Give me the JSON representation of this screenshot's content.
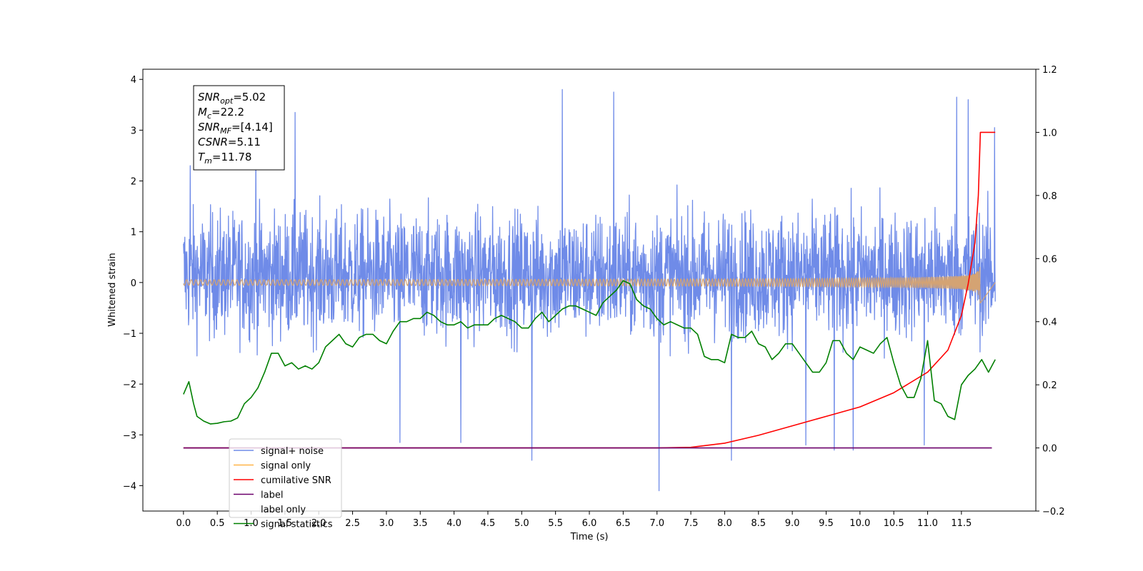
{
  "chart_data": {
    "type": "line",
    "xlabel": "Time (s)",
    "ylabel": "Whitened strain",
    "xlim": [
      -0.6,
      12.6
    ],
    "ylim": [
      -4.5,
      4.2
    ],
    "y2lim": [
      -0.2,
      1.2
    ],
    "grid": false,
    "legend_position": "lower-left",
    "x_ticks": [
      0.0,
      0.5,
      1.0,
      1.5,
      2.0,
      2.5,
      3.0,
      3.5,
      4.0,
      4.5,
      5.0,
      5.5,
      6.0,
      6.5,
      7.0,
      7.5,
      8.0,
      8.5,
      9.0,
      9.5,
      10.0,
      10.5,
      11.0,
      11.5
    ],
    "x_tick_labels": [
      "0.0",
      "0.5",
      "1.0",
      "1.5",
      "2.0",
      "2.5",
      "3.0",
      "3.5",
      "4.0",
      "4.5",
      "5.0",
      "5.5",
      "6.0",
      "6.5",
      "7.0",
      "7.5",
      "8.0",
      "8.5",
      "9.0",
      "9.5",
      "10.0",
      "10.5",
      "11.0",
      "11.5"
    ],
    "y_ticks": [
      -4,
      -3,
      -2,
      -1,
      0,
      1,
      2,
      3,
      4
    ],
    "y_tick_labels": [
      "−4",
      "−3",
      "−2",
      "−1",
      "0",
      "1",
      "2",
      "3",
      "4"
    ],
    "y2_ticks": [
      -0.2,
      0.0,
      0.2,
      0.4,
      0.6,
      0.8,
      1.0,
      1.2
    ],
    "y2_tick_labels": [
      "−0.2",
      "0.0",
      "0.2",
      "0.4",
      "0.6",
      "0.8",
      "1.0",
      "1.2"
    ],
    "annotation": [
      {
        "base": "SNR",
        "sub": "opt",
        "rest": "=5.02"
      },
      {
        "base": "M",
        "sub": "c",
        "rest": "=22.2"
      },
      {
        "base": "SNR",
        "sub": "MF",
        "rest": "=[4.14]"
      },
      {
        "base": "CSNR",
        "sub": "",
        "rest": "=5.11"
      },
      {
        "base": "T",
        "sub": "m",
        "rest": "=11.78"
      }
    ],
    "series": [
      {
        "name": "signal+ noise",
        "axis": "left",
        "color": "#6f8be8",
        "style": "noise",
        "x_range": [
          0.0,
          12.0
        ],
        "y_range": [
          -4.1,
          3.8
        ],
        "spikes": [
          [
            5.6,
            3.8
          ],
          [
            6.36,
            3.75
          ],
          [
            11.43,
            3.65
          ],
          [
            11.6,
            3.6
          ],
          [
            1.65,
            3.35
          ],
          [
            7.03,
            -4.1
          ],
          [
            5.15,
            -3.5
          ],
          [
            8.1,
            -3.5
          ],
          [
            9.2,
            -3.2
          ],
          [
            3.2,
            -3.15
          ],
          [
            4.1,
            -3.15
          ],
          [
            9.62,
            -3.3
          ],
          [
            9.9,
            -3.3
          ],
          [
            10.95,
            -3.2
          ],
          [
            0.1,
            2.3
          ],
          [
            1.07,
            2.8
          ],
          [
            11.99,
            3.05
          ]
        ]
      },
      {
        "name": "signal only",
        "axis": "left",
        "color": "#d4a373",
        "style": "chirp",
        "x_range": [
          0.0,
          11.78
        ],
        "peak_amplitude": 1.0
      },
      {
        "name": "cumilative SNR",
        "axis": "right",
        "color": "#ff0000",
        "points": [
          [
            0.0,
            0.0
          ],
          [
            7.0,
            0.0
          ],
          [
            7.5,
            0.002
          ],
          [
            8.0,
            0.015
          ],
          [
            8.5,
            0.04
          ],
          [
            9.0,
            0.07
          ],
          [
            9.5,
            0.1
          ],
          [
            10.0,
            0.13
          ],
          [
            10.5,
            0.175
          ],
          [
            11.0,
            0.24
          ],
          [
            11.3,
            0.31
          ],
          [
            11.5,
            0.42
          ],
          [
            11.6,
            0.52
          ],
          [
            11.7,
            0.65
          ],
          [
            11.75,
            0.8
          ],
          [
            11.78,
            1.0
          ],
          [
            12.0,
            1.0
          ]
        ]
      },
      {
        "name": "label",
        "axis": "right",
        "color": "#6b006b",
        "points": [
          [
            0.0,
            0.0
          ],
          [
            11.95,
            0.0
          ]
        ]
      },
      {
        "name": "label only",
        "axis": "right",
        "hidden": true,
        "color": "#ffffff",
        "points": []
      },
      {
        "name": "signal statistics",
        "axis": "right",
        "color": "#008000",
        "points": [
          [
            0.0,
            0.17
          ],
          [
            0.08,
            0.21
          ],
          [
            0.15,
            0.14
          ],
          [
            0.2,
            0.1
          ],
          [
            0.3,
            0.085
          ],
          [
            0.4,
            0.076
          ],
          [
            0.5,
            0.078
          ],
          [
            0.6,
            0.083
          ],
          [
            0.7,
            0.085
          ],
          [
            0.8,
            0.095
          ],
          [
            0.9,
            0.14
          ],
          [
            1.0,
            0.16
          ],
          [
            1.1,
            0.19
          ],
          [
            1.2,
            0.24
          ],
          [
            1.3,
            0.3
          ],
          [
            1.4,
            0.3
          ],
          [
            1.5,
            0.26
          ],
          [
            1.6,
            0.27
          ],
          [
            1.7,
            0.25
          ],
          [
            1.8,
            0.26
          ],
          [
            1.9,
            0.25
          ],
          [
            2.0,
            0.27
          ],
          [
            2.1,
            0.32
          ],
          [
            2.2,
            0.34
          ],
          [
            2.3,
            0.36
          ],
          [
            2.4,
            0.33
          ],
          [
            2.5,
            0.32
          ],
          [
            2.6,
            0.35
          ],
          [
            2.7,
            0.36
          ],
          [
            2.8,
            0.36
          ],
          [
            2.9,
            0.34
          ],
          [
            3.0,
            0.33
          ],
          [
            3.1,
            0.37
          ],
          [
            3.2,
            0.4
          ],
          [
            3.3,
            0.4
          ],
          [
            3.4,
            0.41
          ],
          [
            3.5,
            0.41
          ],
          [
            3.6,
            0.43
          ],
          [
            3.7,
            0.42
          ],
          [
            3.8,
            0.4
          ],
          [
            3.9,
            0.39
          ],
          [
            4.0,
            0.39
          ],
          [
            4.1,
            0.4
          ],
          [
            4.2,
            0.38
          ],
          [
            4.3,
            0.39
          ],
          [
            4.4,
            0.39
          ],
          [
            4.5,
            0.39
          ],
          [
            4.6,
            0.41
          ],
          [
            4.7,
            0.42
          ],
          [
            4.8,
            0.41
          ],
          [
            4.9,
            0.4
          ],
          [
            5.0,
            0.38
          ],
          [
            5.1,
            0.38
          ],
          [
            5.2,
            0.41
          ],
          [
            5.3,
            0.43
          ],
          [
            5.4,
            0.4
          ],
          [
            5.5,
            0.42
          ],
          [
            5.6,
            0.44
          ],
          [
            5.7,
            0.45
          ],
          [
            5.8,
            0.45
          ],
          [
            5.9,
            0.44
          ],
          [
            6.0,
            0.43
          ],
          [
            6.1,
            0.42
          ],
          [
            6.2,
            0.46
          ],
          [
            6.3,
            0.48
          ],
          [
            6.4,
            0.5
          ],
          [
            6.5,
            0.53
          ],
          [
            6.6,
            0.52
          ],
          [
            6.7,
            0.47
          ],
          [
            6.8,
            0.45
          ],
          [
            6.9,
            0.44
          ],
          [
            7.0,
            0.41
          ],
          [
            7.1,
            0.39
          ],
          [
            7.2,
            0.4
          ],
          [
            7.3,
            0.39
          ],
          [
            7.4,
            0.38
          ],
          [
            7.5,
            0.38
          ],
          [
            7.6,
            0.36
          ],
          [
            7.7,
            0.29
          ],
          [
            7.8,
            0.28
          ],
          [
            7.9,
            0.28
          ],
          [
            8.0,
            0.27
          ],
          [
            8.1,
            0.36
          ],
          [
            8.2,
            0.35
          ],
          [
            8.3,
            0.35
          ],
          [
            8.4,
            0.37
          ],
          [
            8.5,
            0.33
          ],
          [
            8.6,
            0.32
          ],
          [
            8.7,
            0.28
          ],
          [
            8.8,
            0.3
          ],
          [
            8.9,
            0.33
          ],
          [
            9.0,
            0.33
          ],
          [
            9.1,
            0.3
          ],
          [
            9.2,
            0.27
          ],
          [
            9.3,
            0.24
          ],
          [
            9.4,
            0.24
          ],
          [
            9.5,
            0.27
          ],
          [
            9.6,
            0.34
          ],
          [
            9.7,
            0.34
          ],
          [
            9.8,
            0.3
          ],
          [
            9.9,
            0.28
          ],
          [
            10.0,
            0.32
          ],
          [
            10.1,
            0.31
          ],
          [
            10.2,
            0.3
          ],
          [
            10.3,
            0.33
          ],
          [
            10.4,
            0.35
          ],
          [
            10.5,
            0.27
          ],
          [
            10.6,
            0.2
          ],
          [
            10.7,
            0.16
          ],
          [
            10.8,
            0.16
          ],
          [
            10.9,
            0.22
          ],
          [
            11.0,
            0.34
          ],
          [
            11.1,
            0.15
          ],
          [
            11.2,
            0.14
          ],
          [
            11.3,
            0.1
          ],
          [
            11.4,
            0.09
          ],
          [
            11.5,
            0.2
          ],
          [
            11.6,
            0.23
          ],
          [
            11.7,
            0.25
          ],
          [
            11.8,
            0.28
          ],
          [
            11.9,
            0.24
          ],
          [
            12.0,
            0.28
          ]
        ]
      }
    ]
  }
}
